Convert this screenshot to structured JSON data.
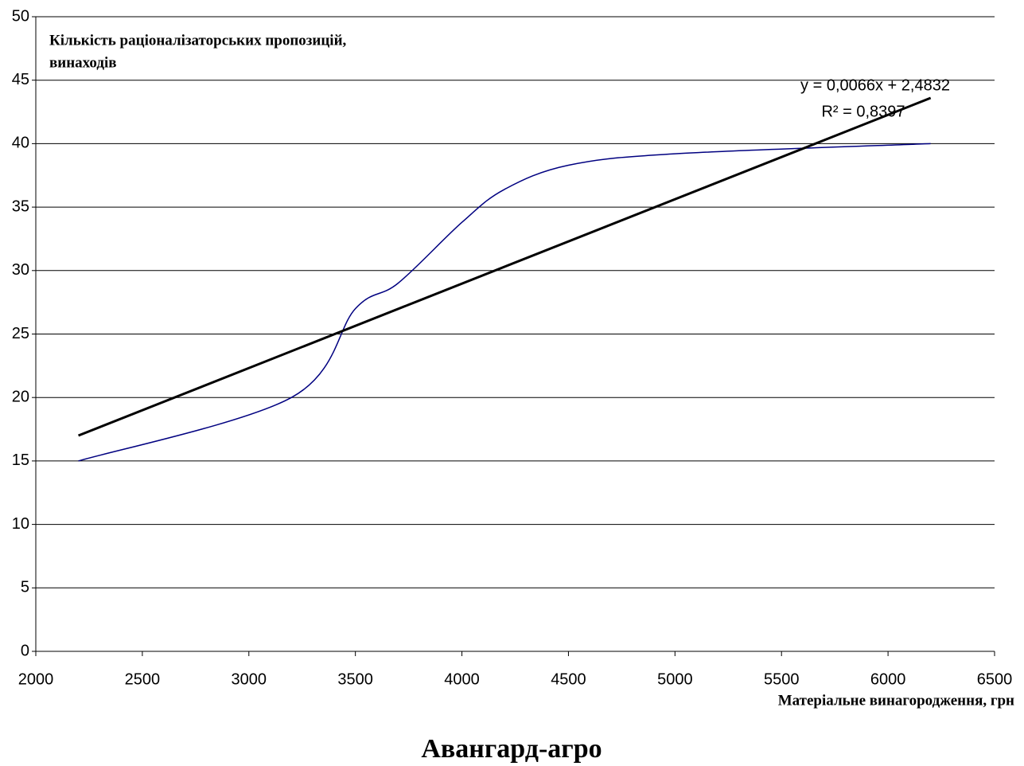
{
  "chart_data": {
    "type": "line",
    "title": "Авангард-агро",
    "xlabel": "Матеріальне винагородження, грн",
    "ylabel": [
      "Кількість раціоналізаторських пропозицій,",
      "винаходів"
    ],
    "x": [
      2200,
      3200,
      3500,
      3700,
      4000,
      4200,
      4500,
      5000,
      6200
    ],
    "series": [
      {
        "color": "#000080",
        "values": [
          15,
          20,
          27,
          29,
          33.8,
          36.4,
          38.3,
          39.2,
          40
        ]
      }
    ],
    "trendline": {
      "color": "#000000",
      "x": [
        2200,
        6200
      ],
      "values": [
        17.0,
        43.6
      ]
    },
    "annotations": [
      "y = 0,0066x + 2,4832",
      "R² = 0,8397"
    ],
    "xlim": [
      2000,
      6500
    ],
    "xticks": [
      2000,
      2500,
      3000,
      3500,
      4000,
      4500,
      5000,
      5500,
      6000,
      6500
    ],
    "ylim": [
      0,
      50
    ],
    "yticks": [
      0,
      5,
      10,
      15,
      20,
      25,
      30,
      35,
      40,
      45,
      50
    ],
    "grid": true
  }
}
